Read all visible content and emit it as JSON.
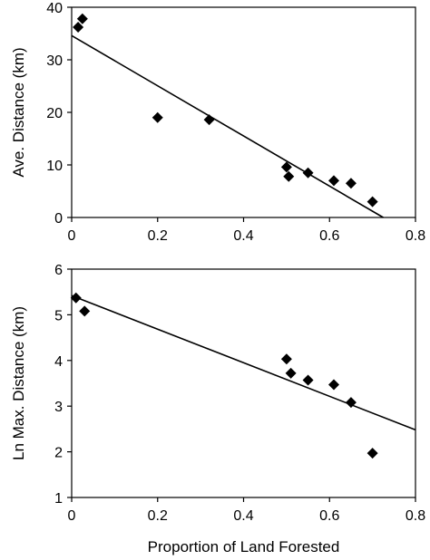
{
  "chart_data": [
    {
      "type": "scatter",
      "xlabel": "",
      "ylabel": "Ave. Distance (km)",
      "xlim": [
        0,
        0.8
      ],
      "ylim": [
        0,
        40
      ],
      "xticks": [
        "0",
        "0.2",
        "0.4",
        "0.6",
        "0.8"
      ],
      "yticks": [
        "0",
        "10",
        "20",
        "30",
        "40"
      ],
      "grid": false,
      "points": [
        {
          "x": 0.015,
          "y": 36.2
        },
        {
          "x": 0.025,
          "y": 37.8
        },
        {
          "x": 0.2,
          "y": 19.0
        },
        {
          "x": 0.32,
          "y": 18.6
        },
        {
          "x": 0.5,
          "y": 9.6
        },
        {
          "x": 0.505,
          "y": 7.8
        },
        {
          "x": 0.55,
          "y": 8.5
        },
        {
          "x": 0.61,
          "y": 7.0
        },
        {
          "x": 0.65,
          "y": 6.5
        },
        {
          "x": 0.7,
          "y": 3.0
        }
      ],
      "trendline": {
        "x": [
          0.0,
          0.725
        ],
        "y": [
          34.6,
          0.0
        ]
      }
    },
    {
      "type": "scatter",
      "xlabel": "Proportion of Land Forested",
      "ylabel": "Ln Max. Distance (km)",
      "xlim": [
        0,
        0.8
      ],
      "ylim": [
        1,
        6
      ],
      "xticks": [
        "0",
        "0.2",
        "0.4",
        "0.6",
        "0.8"
      ],
      "yticks": [
        "1",
        "2",
        "3",
        "4",
        "5",
        "6"
      ],
      "grid": false,
      "points": [
        {
          "x": 0.01,
          "y": 5.37
        },
        {
          "x": 0.03,
          "y": 5.08
        },
        {
          "x": 0.5,
          "y": 4.03
        },
        {
          "x": 0.51,
          "y": 3.72
        },
        {
          "x": 0.55,
          "y": 3.57
        },
        {
          "x": 0.61,
          "y": 3.47
        },
        {
          "x": 0.65,
          "y": 3.08
        },
        {
          "x": 0.7,
          "y": 1.97
        }
      ],
      "trendline": {
        "x": [
          0.0,
          0.8
        ],
        "y": [
          5.42,
          2.48
        ]
      }
    }
  ]
}
